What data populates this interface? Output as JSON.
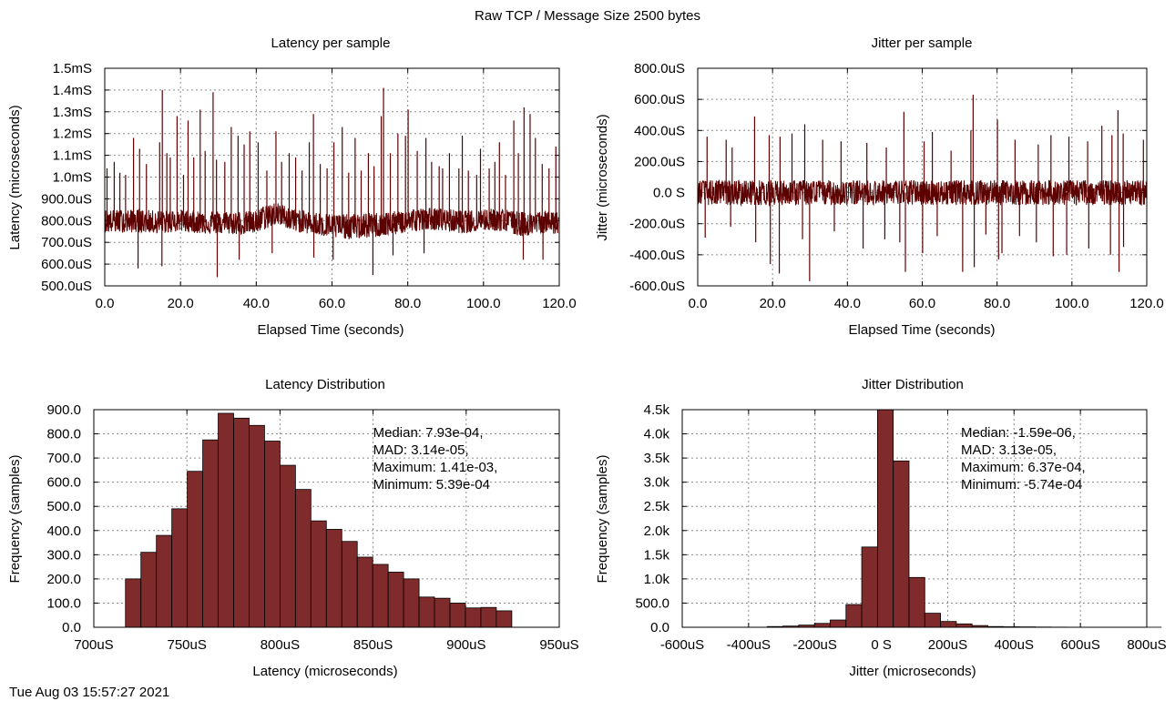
{
  "figure": {
    "title": "Raw TCP / Message Size 2500 bytes",
    "timestamp": "Tue Aug 03 15:57:27 2021"
  },
  "colors": {
    "trace": "#5c0000",
    "bar_fill": "#7f2b2b",
    "bar_edge": "#000000",
    "grid": "#8a8a8a"
  },
  "chart_data": [
    {
      "id": "latency",
      "type": "line",
      "title": "Latency per sample",
      "xlabel": "Elapsed Time (seconds)",
      "ylabel": "Latency (microseconds)",
      "xlim": [
        0,
        120
      ],
      "ylim": [
        0.0005,
        0.0015
      ],
      "grid": true,
      "x_ticks": [
        0,
        20,
        40,
        60,
        80,
        100,
        120
      ],
      "x_tick_labels": [
        "0.0",
        "20.0",
        "40.0",
        "60.0",
        "80.0",
        "100.0",
        "120.0"
      ],
      "y_ticks": [
        0.0005,
        0.0006,
        0.0007,
        0.0008,
        0.0009,
        0.001,
        0.0011,
        0.0012,
        0.0013,
        0.0014,
        0.0015
      ],
      "y_tick_labels": [
        "500.0uS",
        "600.0uS",
        "700.0uS",
        "800.0uS",
        "900.0uS",
        "1.0mS",
        "1.1mS",
        "1.2mS",
        "1.3mS",
        "1.4mS",
        "1.5mS"
      ],
      "series": [
        {
          "x": [
            0.0,
            5.0,
            10.0,
            15.0,
            20.0,
            25.0,
            30.0,
            35.0,
            40.0,
            42.5,
            45.0,
            47.5,
            50.0,
            55.0,
            60.0,
            65.0,
            70.0,
            75.0,
            80.0,
            85.0,
            90.0,
            95.0,
            100.0,
            105.0,
            110.0,
            115.0,
            120.0
          ],
          "base": [
            0.000795,
            0.0008,
            0.000795,
            0.00079,
            0.0008,
            0.000792,
            0.00079,
            0.000785,
            0.00079,
            0.000815,
            0.00083,
            0.00082,
            0.0008,
            0.000785,
            0.000775,
            0.00077,
            0.000775,
            0.000785,
            0.000795,
            0.00081,
            0.0008,
            0.00079,
            0.000805,
            0.0008,
            0.00078,
            0.00079,
            0.00079
          ],
          "band_high": [
            0.00085,
            0.00085,
            0.00085,
            0.000845,
            0.00085,
            0.000845,
            0.000845,
            0.00084,
            0.000845,
            0.000875,
            0.000885,
            0.00087,
            0.000855,
            0.00084,
            0.00083,
            0.00083,
            0.000835,
            0.00084,
            0.00085,
            0.00086,
            0.000855,
            0.000845,
            0.000855,
            0.000855,
            0.00084,
            0.000845,
            0.000845
          ],
          "band_low": [
            0.000745,
            0.000745,
            0.000745,
            0.00074,
            0.00075,
            0.00074,
            0.00074,
            0.000735,
            0.00074,
            0.00076,
            0.00078,
            0.00077,
            0.00075,
            0.000735,
            0.00072,
            0.000715,
            0.00072,
            0.00073,
            0.000745,
            0.00076,
            0.00075,
            0.00074,
            0.000755,
            0.00075,
            0.000725,
            0.00074,
            0.00074
          ],
          "spikes": [
            [
              0.6,
              0.00104
            ],
            [
              2.5,
              0.00107
            ],
            [
              4.0,
              0.00102
            ],
            [
              5.5,
              0.00101
            ],
            [
              7.6,
              0.00118
            ],
            [
              9.2,
              0.00113
            ],
            [
              11.0,
              0.00106
            ],
            [
              14.5,
              0.00116
            ],
            [
              15.2,
              0.0014
            ],
            [
              16.4,
              0.00111
            ],
            [
              17.3,
              0.00109
            ],
            [
              19.1,
              0.00128
            ],
            [
              20.8,
              0.00101
            ],
            [
              22.0,
              0.00126
            ],
            [
              23.5,
              0.00109
            ],
            [
              25.2,
              0.00131
            ],
            [
              26.5,
              0.00112
            ],
            [
              28.6,
              0.00139
            ],
            [
              29.5,
              0.00108
            ],
            [
              31.7,
              0.00107
            ],
            [
              33.4,
              0.00123
            ],
            [
              35.2,
              0.00119
            ],
            [
              36.8,
              0.00115
            ],
            [
              38.3,
              0.00121
            ],
            [
              40.5,
              0.00116
            ],
            [
              42.8,
              0.00103
            ],
            [
              45.2,
              0.00121
            ],
            [
              46.7,
              0.00107
            ],
            [
              48.7,
              0.00111
            ],
            [
              50.4,
              0.00109
            ],
            [
              52.1,
              0.00103
            ],
            [
              54.0,
              0.00116
            ],
            [
              55.1,
              0.00129
            ],
            [
              56.9,
              0.00106
            ],
            [
              58.7,
              0.00104
            ],
            [
              60.5,
              0.00116
            ],
            [
              62.7,
              0.00123
            ],
            [
              64.4,
              0.00102
            ],
            [
              66.1,
              0.00118
            ],
            [
              67.7,
              0.00103
            ],
            [
              69.6,
              0.00111
            ],
            [
              71.1,
              0.00105
            ],
            [
              73.0,
              0.00128
            ],
            [
              73.6,
              0.00141
            ],
            [
              75.4,
              0.00111
            ],
            [
              77.4,
              0.0012
            ],
            [
              79.4,
              0.00119
            ],
            [
              80.1,
              0.00131
            ],
            [
              82.5,
              0.00112
            ],
            [
              84.8,
              0.00118
            ],
            [
              86.3,
              0.00107
            ],
            [
              88.3,
              0.00105
            ],
            [
              89.2,
              0.00104
            ],
            [
              91.0,
              0.00111
            ],
            [
              93.5,
              0.00104
            ],
            [
              94.4,
              0.00119
            ],
            [
              96.0,
              0.00103
            ],
            [
              98.2,
              0.00101
            ],
            [
              99.2,
              0.00113
            ],
            [
              101.5,
              0.00104
            ],
            [
              103.0,
              0.00107
            ],
            [
              104.2,
              0.00116
            ],
            [
              105.8,
              0.00101
            ],
            [
              108.0,
              0.00126
            ],
            [
              109.2,
              0.00111
            ],
            [
              110.7,
              0.00132
            ],
            [
              112.3,
              0.00129
            ],
            [
              113.7,
              0.00118
            ],
            [
              115.5,
              0.00106
            ],
            [
              117.3,
              0.00104
            ],
            [
              119.1,
              0.00114
            ]
          ],
          "dips": [
            [
              8.8,
              0.00058
            ],
            [
              15.1,
              0.00059
            ],
            [
              29.7,
              0.00054
            ],
            [
              35.5,
              0.00062
            ],
            [
              44.2,
              0.00065
            ],
            [
              55.2,
              0.00063
            ],
            [
              60.3,
              0.00062
            ],
            [
              70.8,
              0.00055
            ],
            [
              76.1,
              0.00064
            ],
            [
              84.3,
              0.00065
            ],
            [
              110.5,
              0.00062
            ],
            [
              115.7,
              0.00062
            ]
          ]
        }
      ]
    },
    {
      "id": "jitter",
      "type": "line",
      "title": "Jitter per sample",
      "xlabel": "Elapsed Time (seconds)",
      "ylabel": "Jitter (microseconds)",
      "xlim": [
        0,
        120
      ],
      "ylim": [
        -0.0006,
        0.0008
      ],
      "grid": true,
      "x_ticks": [
        0,
        20,
        40,
        60,
        80,
        100,
        120
      ],
      "x_tick_labels": [
        "0.0",
        "20.0",
        "40.0",
        "60.0",
        "80.0",
        "100.0",
        "120.0"
      ],
      "y_ticks": [
        -0.0006,
        -0.0004,
        -0.0002,
        0,
        0.0002,
        0.0004,
        0.0006,
        0.0008
      ],
      "y_tick_labels": [
        "-600.0uS",
        "-400.0uS",
        "-200.0uS",
        "0.0 S",
        "200.0uS",
        "400.0uS",
        "600.0uS",
        "800.0uS"
      ],
      "series": [
        {
          "band": 8e-05,
          "spikes": [
            [
              2.5,
              0.00036
            ],
            [
              7.6,
              0.00034
            ],
            [
              9.2,
              0.00029
            ],
            [
              15.2,
              0.00049
            ],
            [
              19.1,
              0.00037
            ],
            [
              22.0,
              0.00036
            ],
            [
              25.2,
              0.00038
            ],
            [
              28.6,
              0.00044
            ],
            [
              33.4,
              0.00034
            ],
            [
              38.3,
              0.00033
            ],
            [
              45.2,
              0.00032
            ],
            [
              50.4,
              0.00029
            ],
            [
              55.1,
              0.00052
            ],
            [
              60.5,
              0.00033
            ],
            [
              62.7,
              0.00039
            ],
            [
              67.7,
              0.00027
            ],
            [
              73.0,
              0.0004
            ],
            [
              73.6,
              0.00063
            ],
            [
              80.1,
              0.00047
            ],
            [
              84.8,
              0.00034
            ],
            [
              91.0,
              0.00031
            ],
            [
              94.4,
              0.00037
            ],
            [
              99.2,
              0.00036
            ],
            [
              104.2,
              0.00033
            ],
            [
              108.0,
              0.00043
            ],
            [
              110.7,
              0.00037
            ],
            [
              112.3,
              0.00053
            ],
            [
              113.7,
              0.00038
            ],
            [
              119.1,
              0.00034
            ]
          ],
          "dips": [
            [
              2.0,
              -0.00029
            ],
            [
              8.8,
              -0.00022
            ],
            [
              15.5,
              -0.00032
            ],
            [
              19.4,
              -0.00046
            ],
            [
              21.8,
              -0.00052
            ],
            [
              28.0,
              -0.0003
            ],
            [
              29.9,
              -0.00057
            ],
            [
              36.5,
              -0.00025
            ],
            [
              44.2,
              -0.00036
            ],
            [
              50.0,
              -0.0003
            ],
            [
              54.0,
              -0.00032
            ],
            [
              55.5,
              -0.00051
            ],
            [
              60.1,
              -0.00039
            ],
            [
              64.0,
              -0.00028
            ],
            [
              70.8,
              -0.00051
            ],
            [
              73.9,
              -0.00048
            ],
            [
              77.0,
              -0.00027
            ],
            [
              80.4,
              -0.00043
            ],
            [
              81.3,
              -0.00039
            ],
            [
              86.0,
              -0.00028
            ],
            [
              90.5,
              -0.00032
            ],
            [
              95.0,
              -0.00041
            ],
            [
              98.6,
              -0.0004
            ],
            [
              104.5,
              -0.00036
            ],
            [
              110.3,
              -0.0004
            ],
            [
              112.6,
              -0.00051
            ],
            [
              113.8,
              -0.00035
            ]
          ]
        }
      ]
    },
    {
      "id": "latency_dist",
      "type": "bar",
      "title": "Latency Distribution",
      "xlabel": "Latency (microseconds)",
      "ylabel": "Frequency (samples)",
      "xlim": [
        0.0007,
        0.00095
      ],
      "ylim": [
        0,
        900
      ],
      "grid": true,
      "x_ticks": [
        0.0007,
        0.00075,
        0.0008,
        0.00085,
        0.0009,
        0.00095
      ],
      "x_tick_labels": [
        "700uS",
        "750uS",
        "800uS",
        "850uS",
        "900uS",
        "950uS"
      ],
      "y_ticks": [
        0,
        100,
        200,
        300,
        400,
        500,
        600,
        700,
        800,
        900
      ],
      "y_tick_labels": [
        "0.0",
        "100.0",
        "200.0",
        "300.0",
        "400.0",
        "500.0",
        "600.0",
        "700.0",
        "800.0",
        "900.0"
      ],
      "bin_start": 0.000717,
      "bin_width": 8.3e-06,
      "values": [
        200,
        310,
        380,
        490,
        645,
        775,
        885,
        865,
        835,
        770,
        670,
        570,
        440,
        405,
        355,
        290,
        260,
        228,
        200,
        125,
        120,
        100,
        80,
        82,
        68
      ],
      "annotation": [
        "Median: 7.93e-04,",
        "MAD: 3.14e-05,",
        "Maximum: 1.41e-03,",
        "Minimum: 5.39e-04"
      ]
    },
    {
      "id": "jitter_dist",
      "type": "bar",
      "title": "Jitter Distribution",
      "xlabel": "Jitter (microseconds)",
      "ylabel": "Frequency (samples)",
      "xlim": [
        -0.0006,
        0.0008
      ],
      "ylim": [
        0,
        4500
      ],
      "grid": true,
      "x_ticks": [
        -0.0006,
        -0.0004,
        -0.0002,
        0,
        0.0002,
        0.0004,
        0.0006,
        0.0008
      ],
      "x_tick_labels": [
        "-600uS",
        "-400uS",
        "-200uS",
        "0 S",
        "200uS",
        "400uS",
        "600uS",
        "800uS"
      ],
      "y_ticks": [
        0,
        500,
        1000,
        1500,
        2000,
        2500,
        3000,
        3500,
        4000,
        4500
      ],
      "y_tick_labels": [
        "0.0",
        "500.0",
        "1.0k",
        "1.5k",
        "2.0k",
        "2.5k",
        "3.0k",
        "3.5k",
        "4.0k",
        "4.5k"
      ],
      "bin_start": -0.000344,
      "bin_width": 4.75e-05,
      "values": [
        15,
        25,
        45,
        80,
        150,
        470,
        1660,
        4500,
        3440,
        1030,
        290,
        120,
        70,
        35,
        15,
        10,
        8,
        5,
        3,
        2,
        1,
        1,
        1,
        1,
        1
      ],
      "annotation": [
        "Median: -1.59e-06,",
        "MAD: 3.13e-05,",
        "Maximum: 6.37e-04,",
        "Minimum: -5.74e-04"
      ]
    }
  ]
}
